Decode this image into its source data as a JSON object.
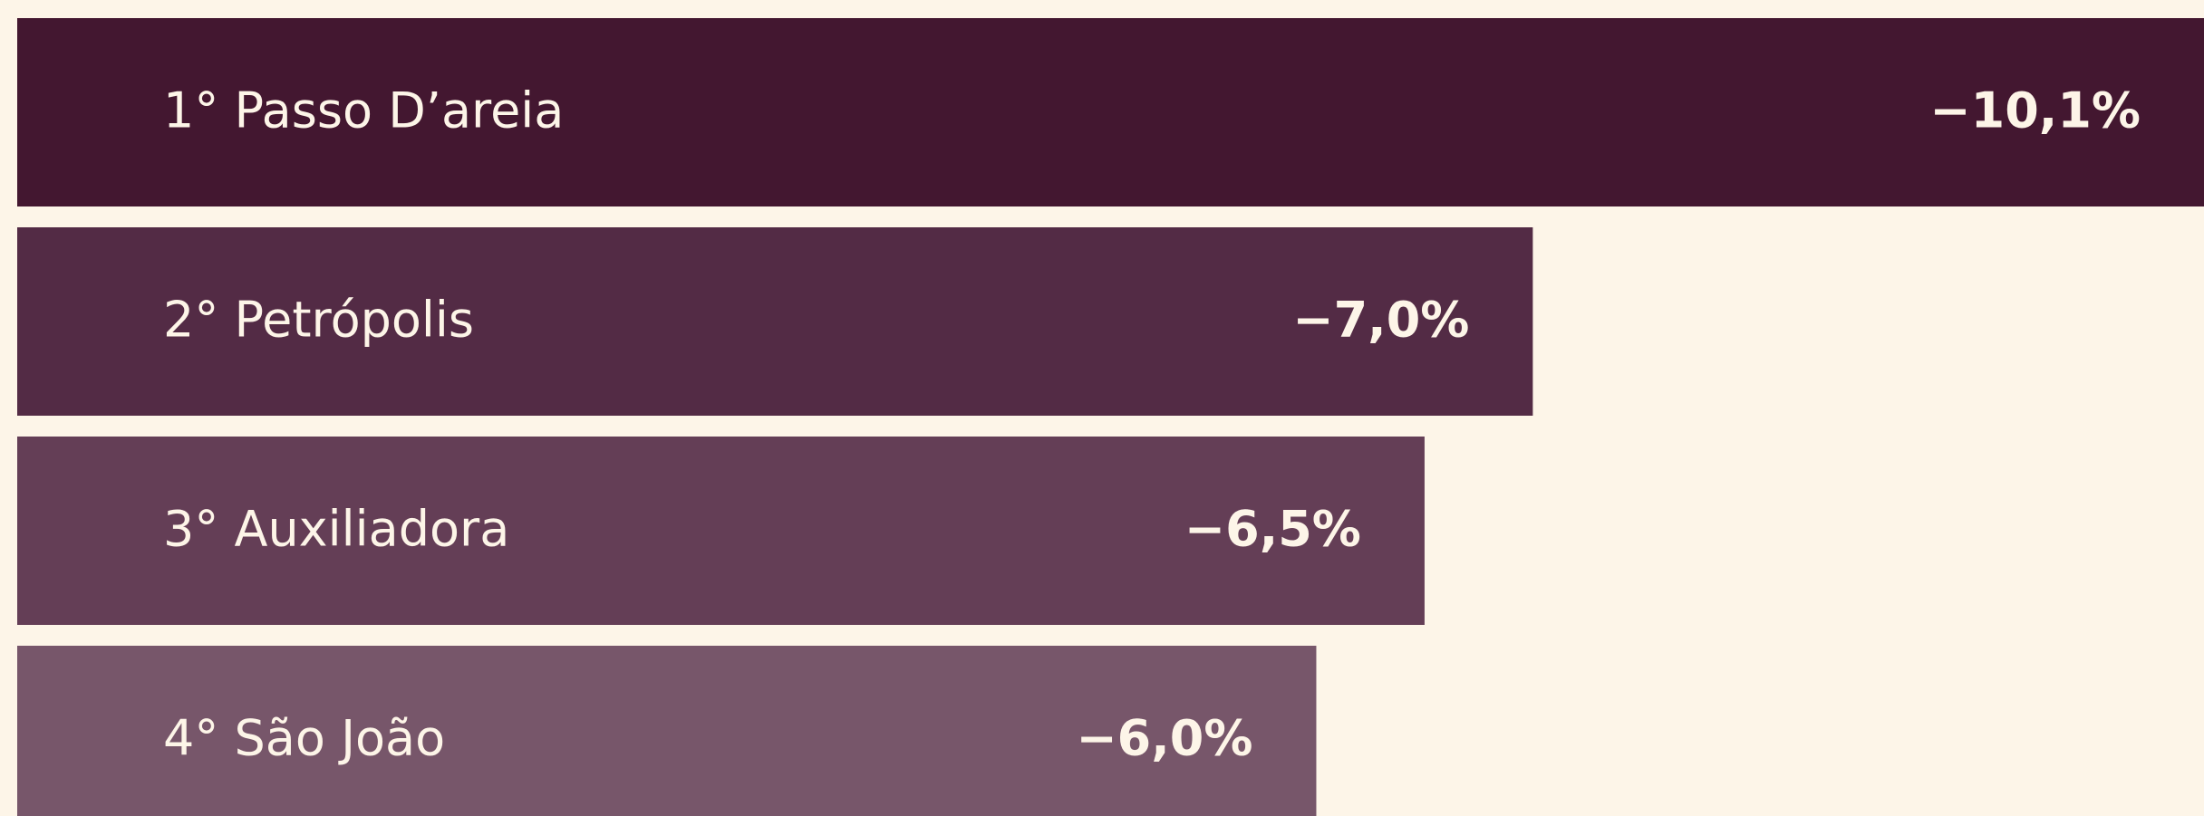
{
  "chart_data": {
    "type": "bar",
    "orientation": "horizontal",
    "categories": [
      "1° Passo D’areia",
      "2° Petrópolis",
      "3° Auxiliadora",
      "4° São João"
    ],
    "values": [
      -10.1,
      -7.0,
      -6.5,
      -6.0
    ],
    "value_labels": [
      "−10,1%",
      "−7,0%",
      "−6,5%",
      "−6,0%"
    ],
    "colors": [
      "#431730",
      "#532b45",
      "#643e56",
      "#77566a"
    ],
    "xlim": [
      0,
      -10.1
    ]
  }
}
